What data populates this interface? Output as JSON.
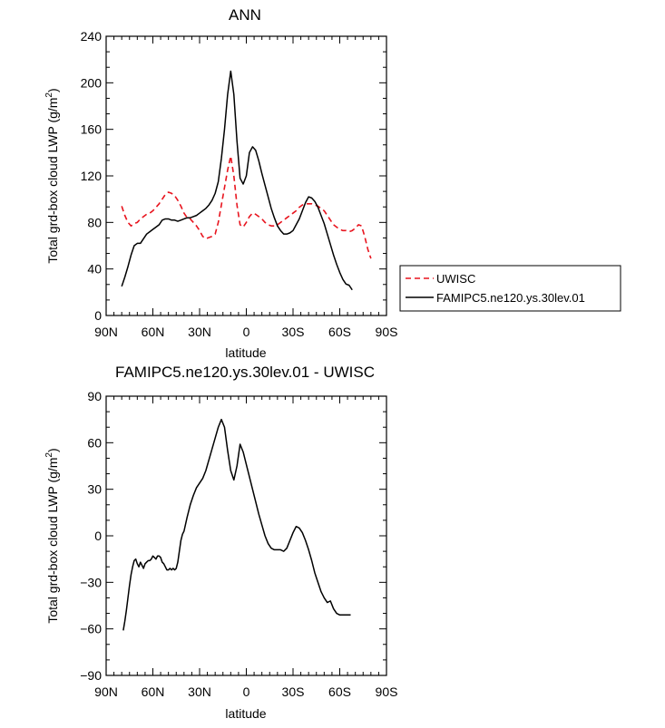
{
  "chart_data": [
    {
      "type": "line",
      "title": "ANN",
      "xlabel": "latitude",
      "ylabel": "Total grd-box cloud LWP (g/m²)",
      "ylabel_parts": {
        "main": "Total grd-box cloud LWP (g/m",
        "sup": "2",
        "tail": ")"
      },
      "x_ticks": [
        90,
        60,
        30,
        0,
        -30,
        -60,
        -90
      ],
      "x_tick_labels": [
        "90N",
        "60N",
        "30N",
        "0",
        "30S",
        "60S",
        "90S"
      ],
      "xlim": [
        90,
        -90
      ],
      "ylim": [
        0,
        240
      ],
      "y_ticks": [
        0,
        40,
        80,
        120,
        160,
        200,
        240
      ],
      "y_tick_labels": [
        "0",
        "40",
        "80",
        "120",
        "160",
        "200",
        "240"
      ],
      "grid": false,
      "legend_position": "right",
      "series": [
        {
          "name": "UWISC",
          "color": "#e8141e",
          "style": "dashed",
          "x": [
            80,
            78,
            76,
            74,
            72,
            70,
            68,
            66,
            64,
            62,
            60,
            58,
            56,
            54,
            52,
            50,
            48,
            46,
            44,
            42,
            40,
            38,
            36,
            34,
            32,
            30,
            28,
            26,
            24,
            22,
            20,
            18,
            16,
            14,
            12,
            10,
            8,
            6,
            4,
            2,
            0,
            -2,
            -4,
            -6,
            -8,
            -10,
            -12,
            -14,
            -16,
            -18,
            -20,
            -22,
            -24,
            -26,
            -28,
            -30,
            -32,
            -34,
            -36,
            -38,
            -40,
            -42,
            -44,
            -46,
            -48,
            -50,
            -52,
            -54,
            -56,
            -58,
            -60,
            -62,
            -64,
            -66,
            -68,
            -70,
            -72,
            -74,
            -76,
            -78,
            -80
          ],
          "values": [
            94,
            86,
            80,
            77,
            79,
            80,
            83,
            85,
            87,
            88,
            90,
            93,
            96,
            100,
            104,
            106,
            105,
            103,
            99,
            94,
            88,
            84,
            83,
            80,
            77,
            73,
            68,
            66,
            67,
            68,
            70,
            80,
            95,
            110,
            125,
            137,
            120,
            95,
            78,
            76,
            80,
            85,
            88,
            87,
            85,
            83,
            80,
            78,
            77,
            77,
            78,
            80,
            82,
            84,
            86,
            88,
            90,
            93,
            95,
            96,
            96,
            96,
            95,
            94,
            92,
            90,
            86,
            82,
            78,
            76,
            74,
            73,
            73,
            72,
            73,
            75,
            78,
            77,
            68,
            57,
            49
          ]
        },
        {
          "name": "FAMIPC5.ne120.ys.30lev.01",
          "color": "#000000",
          "style": "solid",
          "x": [
            80,
            78,
            76,
            74,
            72,
            70,
            68,
            66,
            64,
            62,
            60,
            58,
            56,
            54,
            52,
            50,
            48,
            46,
            44,
            42,
            40,
            38,
            36,
            34,
            32,
            30,
            28,
            26,
            24,
            22,
            20,
            18,
            16,
            14,
            12,
            10,
            8,
            6,
            4,
            2,
            0,
            -2,
            -4,
            -6,
            -8,
            -10,
            -12,
            -14,
            -16,
            -18,
            -20,
            -22,
            -24,
            -26,
            -28,
            -30,
            -32,
            -34,
            -36,
            -38,
            -40,
            -42,
            -44,
            -46,
            -48,
            -50,
            -52,
            -54,
            -56,
            -58,
            -60,
            -62,
            -64,
            -66,
            -68
          ],
          "values": [
            25,
            33,
            42,
            52,
            60,
            62,
            62,
            66,
            70,
            72,
            74,
            76,
            78,
            82,
            83,
            83,
            82,
            82,
            81,
            82,
            83,
            84,
            84,
            85,
            86,
            88,
            90,
            92,
            95,
            99,
            105,
            115,
            135,
            160,
            190,
            210,
            190,
            150,
            118,
            113,
            120,
            140,
            145,
            142,
            133,
            122,
            112,
            102,
            92,
            84,
            77,
            73,
            70,
            70,
            71,
            73,
            78,
            83,
            90,
            97,
            102,
            101,
            98,
            93,
            86,
            79,
            70,
            61,
            52,
            44,
            37,
            31,
            27,
            26,
            22
          ]
        }
      ]
    },
    {
      "type": "line",
      "title": "FAMIPC5.ne120.ys.30lev.01 - UWISC",
      "xlabel": "latitude",
      "ylabel": "Total grd-box cloud LWP (g/m²)",
      "ylabel_parts": {
        "main": "Total grd-box cloud LWP (g/m",
        "sup": "2",
        "tail": ")"
      },
      "x_ticks": [
        90,
        60,
        30,
        0,
        -30,
        -60,
        -90
      ],
      "x_tick_labels": [
        "90N",
        "60N",
        "30N",
        "0",
        "30S",
        "60S",
        "90S"
      ],
      "xlim": [
        90,
        -90
      ],
      "ylim": [
        -90,
        90
      ],
      "y_ticks": [
        -90,
        -60,
        -30,
        0,
        30,
        60,
        90
      ],
      "y_tick_labels": [
        "−90",
        "−60",
        "−30",
        "0",
        "30",
        "60",
        "90"
      ],
      "grid": false,
      "series": [
        {
          "name": "FAMIPC5.ne120.ys.30lev.01 - UWISC",
          "color": "#000000",
          "style": "solid",
          "x": [
            79,
            78,
            77,
            76,
            75,
            74,
            73,
            72,
            71,
            70,
            69,
            68,
            67,
            66,
            65,
            64,
            63,
            62,
            61,
            60,
            59,
            58,
            57,
            56,
            55,
            54,
            53,
            52,
            51,
            50,
            49,
            48,
            47,
            46,
            45,
            44,
            43,
            42,
            41,
            40,
            38,
            36,
            34,
            32,
            30,
            28,
            26,
            24,
            22,
            20,
            18,
            16,
            14,
            12,
            10,
            8,
            6,
            4,
            2,
            0,
            -2,
            -4,
            -6,
            -8,
            -10,
            -12,
            -14,
            -16,
            -18,
            -20,
            -22,
            -24,
            -26,
            -28,
            -30,
            -32,
            -34,
            -36,
            -38,
            -40,
            -42,
            -44,
            -46,
            -48,
            -50,
            -52,
            -54,
            -56,
            -58,
            -60,
            -62,
            -64,
            -66,
            -67
          ],
          "values": [
            -61,
            -55,
            -48,
            -40,
            -32,
            -25,
            -20,
            -16,
            -15,
            -18,
            -20,
            -17,
            -19,
            -21,
            -18,
            -17,
            -16,
            -16,
            -15,
            -13,
            -14,
            -15,
            -13,
            -13,
            -14,
            -17,
            -18,
            -20,
            -22,
            -22,
            -21,
            -22,
            -21,
            -22,
            -21,
            -17,
            -10,
            -3,
            1,
            3,
            12,
            20,
            26,
            31,
            34,
            37,
            42,
            49,
            56,
            63,
            70,
            75,
            70,
            55,
            42,
            36,
            45,
            59,
            54,
            46,
            38,
            30,
            22,
            14,
            7,
            0,
            -5,
            -8,
            -9,
            -9,
            -9,
            -10,
            -8,
            -3,
            2,
            6,
            5,
            2,
            -3,
            -9,
            -16,
            -24,
            -30,
            -36,
            -40,
            -43,
            -42,
            -47,
            -50,
            -51,
            -51,
            -51,
            -51,
            -51
          ]
        }
      ]
    }
  ]
}
